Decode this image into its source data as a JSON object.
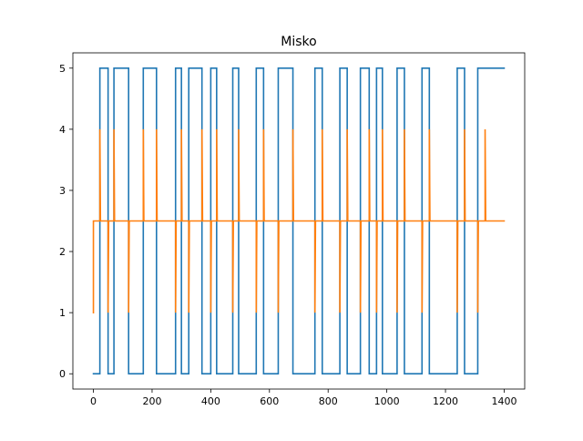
{
  "chart_data": {
    "type": "line",
    "title": "Misko",
    "xlabel": "",
    "ylabel": "",
    "xlim": [
      -70,
      1470
    ],
    "ylim": [
      -0.25,
      5.25
    ],
    "xticks": [
      0,
      200,
      400,
      600,
      800,
      1000,
      1200,
      1400
    ],
    "yticks": [
      0,
      1,
      2,
      3,
      4,
      5
    ],
    "grid": false,
    "legend": "none",
    "series": [
      {
        "color": "#1f77b4",
        "drawstyle": "steps",
        "x": [
          0,
          22,
          22,
          50,
          50,
          70,
          70,
          120,
          120,
          170,
          170,
          215,
          215,
          280,
          280,
          300,
          300,
          325,
          325,
          370,
          370,
          400,
          400,
          420,
          420,
          475,
          475,
          495,
          495,
          555,
          555,
          580,
          580,
          630,
          630,
          680,
          680,
          755,
          755,
          780,
          780,
          840,
          840,
          865,
          865,
          910,
          910,
          940,
          940,
          965,
          965,
          985,
          985,
          1035,
          1035,
          1060,
          1060,
          1120,
          1120,
          1145,
          1145,
          1240,
          1240,
          1265,
          1265,
          1310,
          1310,
          1335,
          1335,
          1400
        ],
        "y": [
          0,
          0,
          5,
          5,
          0,
          0,
          5,
          5,
          0,
          0,
          5,
          5,
          0,
          0,
          5,
          5,
          0,
          0,
          5,
          5,
          0,
          0,
          5,
          5,
          0,
          0,
          5,
          5,
          0,
          0,
          5,
          5,
          0,
          0,
          5,
          5,
          0,
          0,
          5,
          5,
          0,
          0,
          5,
          5,
          0,
          0,
          5,
          5,
          0,
          0,
          5,
          5,
          0,
          0,
          5,
          5,
          0,
          0,
          5,
          5,
          0,
          0,
          5,
          5,
          0,
          0,
          5,
          5,
          5,
          5
        ]
      },
      {
        "color": "#ff7f0e",
        "drawstyle": "line",
        "x": [
          0,
          0,
          22,
          22,
          24,
          50,
          50,
          52,
          70,
          70,
          72,
          120,
          120,
          122,
          170,
          170,
          172,
          215,
          215,
          217,
          280,
          280,
          282,
          300,
          300,
          302,
          325,
          325,
          327,
          370,
          370,
          372,
          400,
          400,
          402,
          420,
          420,
          422,
          475,
          475,
          477,
          495,
          495,
          497,
          555,
          555,
          557,
          580,
          580,
          582,
          630,
          630,
          632,
          680,
          680,
          682,
          755,
          755,
          757,
          780,
          780,
          782,
          840,
          840,
          842,
          865,
          865,
          867,
          910,
          910,
          912,
          940,
          940,
          942,
          965,
          965,
          967,
          985,
          985,
          987,
          1035,
          1035,
          1037,
          1060,
          1060,
          1062,
          1120,
          1120,
          1122,
          1145,
          1145,
          1147,
          1240,
          1240,
          1242,
          1265,
          1265,
          1267,
          1310,
          1310,
          1312,
          1335,
          1335,
          1337,
          1400
        ],
        "y": [
          1,
          2.5,
          2.5,
          4,
          2.5,
          2.5,
          1,
          2.5,
          2.5,
          4,
          2.5,
          2.5,
          1,
          2.5,
          2.5,
          4,
          2.5,
          2.5,
          4,
          2.5,
          2.5,
          1,
          2.5,
          2.5,
          4,
          2.5,
          2.5,
          1,
          2.5,
          2.5,
          4,
          2.5,
          2.5,
          1,
          2.5,
          2.5,
          4,
          2.5,
          2.5,
          1,
          2.5,
          2.5,
          4,
          2.5,
          2.5,
          1,
          2.5,
          2.5,
          4,
          2.5,
          2.5,
          1,
          2.5,
          2.5,
          4,
          2.5,
          2.5,
          1,
          2.5,
          2.5,
          4,
          2.5,
          2.5,
          1,
          2.5,
          2.5,
          4,
          2.5,
          2.5,
          1,
          2.5,
          2.5,
          4,
          2.5,
          2.5,
          1,
          2.5,
          2.5,
          4,
          2.5,
          2.5,
          1,
          2.5,
          2.5,
          4,
          2.5,
          2.5,
          1,
          2.5,
          2.5,
          4,
          2.5,
          2.5,
          1,
          2.5,
          2.5,
          4,
          2.5,
          2.5,
          1,
          2.5,
          2.5,
          4,
          2.5,
          2.5
        ]
      }
    ]
  }
}
